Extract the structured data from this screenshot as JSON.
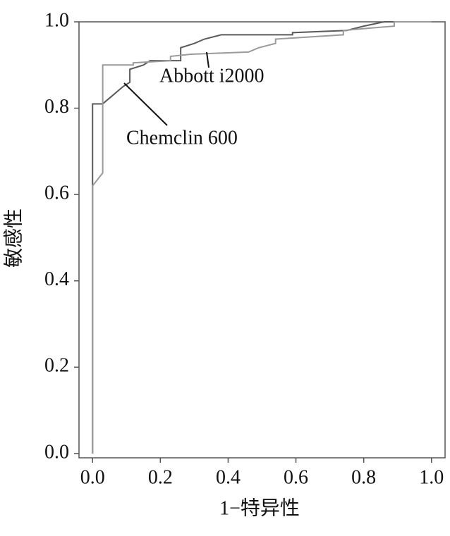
{
  "chart_data": {
    "type": "line",
    "x_label": "1−特异性",
    "y_label": "敏感性",
    "xlim": [
      -0.04,
      1.04
    ],
    "ylim": [
      -0.01,
      1.0
    ],
    "xticks": [
      {
        "value": 0,
        "label": "0.0"
      },
      0.2,
      0.4,
      0.6,
      0.8,
      {
        "value": 1,
        "label": "1.0"
      }
    ],
    "yticks": [
      {
        "value": 0,
        "label": "0.0"
      },
      0.2,
      0.4,
      0.6,
      0.8,
      {
        "value": 1,
        "label": "1.0"
      }
    ],
    "series": [
      {
        "name": "Chemclin 600",
        "color": "#5a5a5a",
        "x": [
          0,
          0,
          0.03,
          0.06,
          0.09,
          0.11,
          0.11,
          0.15,
          0.17,
          0.26,
          0.26,
          0.3,
          0.33,
          0.38,
          0.59,
          0.59,
          0.75,
          0.8,
          0.86,
          1.0
        ],
        "values": [
          0,
          0.81,
          0.81,
          0.83,
          0.85,
          0.86,
          0.89,
          0.9,
          0.91,
          0.91,
          0.94,
          0.95,
          0.96,
          0.97,
          0.97,
          0.975,
          0.98,
          0.99,
          1.0,
          1.0
        ]
      },
      {
        "name": "Abbott i2000",
        "color": "#9a9a9a",
        "x": [
          0,
          0,
          0.03,
          0.03,
          0.12,
          0.12,
          0.23,
          0.23,
          0.29,
          0.46,
          0.49,
          0.54,
          0.54,
          0.74,
          0.74,
          0.81,
          0.89,
          0.89,
          1.0
        ],
        "values": [
          0,
          0.62,
          0.65,
          0.9,
          0.9,
          0.905,
          0.91,
          0.92,
          0.925,
          0.93,
          0.94,
          0.95,
          0.96,
          0.97,
          0.98,
          0.985,
          0.99,
          1.0,
          1.0
        ]
      }
    ]
  }
}
